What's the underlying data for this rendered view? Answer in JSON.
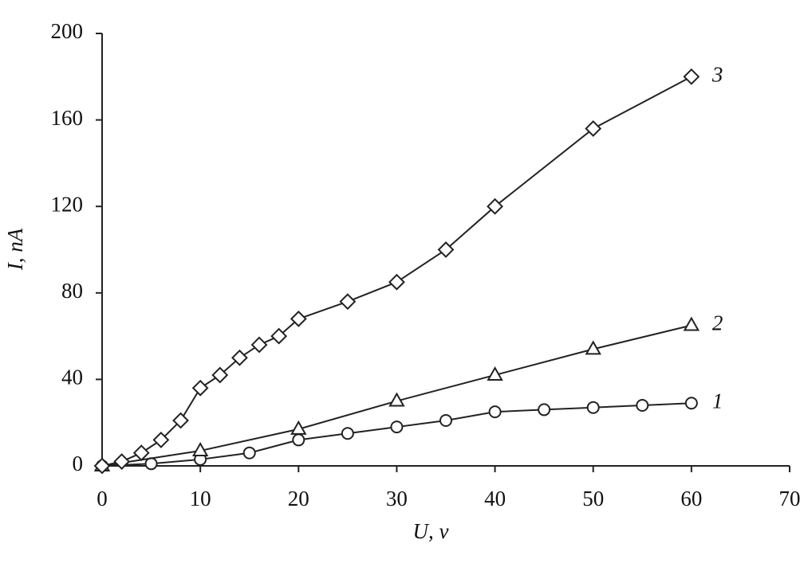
{
  "chart_data": {
    "type": "line",
    "xlabel": "U, v",
    "ylabel": "I, nA",
    "xlim": [
      0,
      70
    ],
    "xticks": [
      0,
      10,
      20,
      30,
      40,
      50,
      60,
      70
    ],
    "ylim": [
      0,
      200
    ],
    "yticks": [
      0,
      40,
      80,
      120,
      160,
      200
    ],
    "series": [
      {
        "name": "1",
        "color": "#222222",
        "marker": "circle",
        "x": [
          0,
          5,
          10,
          15,
          20,
          25,
          30,
          35,
          40,
          45,
          50,
          55,
          60
        ],
        "values": [
          0,
          1,
          3,
          6,
          12,
          15,
          18,
          21,
          25,
          26,
          27,
          28,
          29
        ]
      },
      {
        "name": "2",
        "color": "#222222",
        "marker": "triangle",
        "x": [
          0,
          10,
          20,
          30,
          40,
          50,
          60
        ],
        "values": [
          0,
          7,
          17,
          30,
          42,
          54,
          65
        ]
      },
      {
        "name": "3",
        "color": "#222222",
        "marker": "diamond",
        "x": [
          0,
          2,
          4,
          6,
          8,
          10,
          12,
          14,
          16,
          18,
          20,
          25,
          30,
          35,
          40,
          50,
          60
        ],
        "values": [
          0,
          2,
          6,
          12,
          21,
          36,
          42,
          50,
          56,
          60,
          68,
          76,
          85,
          100,
          120,
          156,
          180
        ]
      }
    ]
  }
}
